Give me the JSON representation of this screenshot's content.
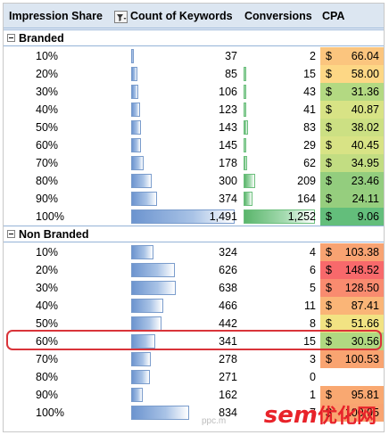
{
  "headers": {
    "impression_share": "Impression Share",
    "count_of_keywords": "Count of Keywords",
    "conversions": "Conversions",
    "cpa": "CPA"
  },
  "groups": [
    {
      "name": "Branded",
      "rows": [
        {
          "label": "10%",
          "count": "37",
          "count_frac": 0.025,
          "conv": "2",
          "conv_frac": 0.002,
          "cpa_sign": "$",
          "cpa": "66.04",
          "cpa_color": "#fbc57e"
        },
        {
          "label": "20%",
          "count": "85",
          "count_frac": 0.057,
          "conv": "15",
          "conv_frac": 0.012,
          "cpa_sign": "$",
          "cpa": "58.00",
          "cpa_color": "#fdd785"
        },
        {
          "label": "30%",
          "count": "106",
          "count_frac": 0.071,
          "conv": "43",
          "conv_frac": 0.034,
          "cpa_sign": "$",
          "cpa": "31.36",
          "cpa_color": "#b3d982"
        },
        {
          "label": "40%",
          "count": "123",
          "count_frac": 0.082,
          "conv": "41",
          "conv_frac": 0.033,
          "cpa_sign": "$",
          "cpa": "40.87",
          "cpa_color": "#d8e385"
        },
        {
          "label": "50%",
          "count": "143",
          "count_frac": 0.096,
          "conv": "83",
          "conv_frac": 0.066,
          "cpa_sign": "$",
          "cpa": "38.02",
          "cpa_color": "#cce083"
        },
        {
          "label": "60%",
          "count": "145",
          "count_frac": 0.097,
          "conv": "29",
          "conv_frac": 0.023,
          "cpa_sign": "$",
          "cpa": "40.45",
          "cpa_color": "#d8e385"
        },
        {
          "label": "70%",
          "count": "178",
          "count_frac": 0.119,
          "conv": "62",
          "conv_frac": 0.05,
          "cpa_sign": "$",
          "cpa": "34.95",
          "cpa_color": "#c2dd82"
        },
        {
          "label": "80%",
          "count": "300",
          "count_frac": 0.201,
          "conv": "209",
          "conv_frac": 0.167,
          "cpa_sign": "$",
          "cpa": "23.46",
          "cpa_color": "#93cd7e"
        },
        {
          "label": "90%",
          "count": "374",
          "count_frac": 0.251,
          "conv": "164",
          "conv_frac": 0.131,
          "cpa_sign": "$",
          "cpa": "24.11",
          "cpa_color": "#96ce7e"
        },
        {
          "label": "100%",
          "count": "1,491",
          "count_frac": 1.0,
          "conv": "1,252",
          "conv_frac": 1.0,
          "cpa_sign": "$",
          "cpa": "9.06",
          "cpa_color": "#63be7b"
        }
      ]
    },
    {
      "name": "Non Branded",
      "rows": [
        {
          "label": "10%",
          "count": "324",
          "count_frac": 0.217,
          "conv": "4",
          "conv_frac": 0.0,
          "cpa_sign": "$",
          "cpa": "103.38",
          "cpa_color": "#f8a372"
        },
        {
          "label": "20%",
          "count": "626",
          "count_frac": 0.42,
          "conv": "6",
          "conv_frac": 0.0,
          "cpa_sign": "$",
          "cpa": "148.52",
          "cpa_color": "#f8696b"
        },
        {
          "label": "30%",
          "count": "638",
          "count_frac": 0.428,
          "conv": "5",
          "conv_frac": 0.0,
          "cpa_sign": "$",
          "cpa": "128.50",
          "cpa_color": "#f98b6f"
        },
        {
          "label": "40%",
          "count": "466",
          "count_frac": 0.313,
          "conv": "11",
          "conv_frac": 0.0,
          "cpa_sign": "$",
          "cpa": "87.41",
          "cpa_color": "#fab577"
        },
        {
          "label": "50%",
          "count": "442",
          "count_frac": 0.296,
          "conv": "8",
          "conv_frac": 0.0,
          "cpa_sign": "$",
          "cpa": "51.66",
          "cpa_color": "#f2e383"
        },
        {
          "label": "60%",
          "count": "341",
          "count_frac": 0.229,
          "conv": "15",
          "conv_frac": 0.0,
          "cpa_sign": "$",
          "cpa": "30.56",
          "cpa_color": "#b0d881"
        },
        {
          "label": "70%",
          "count": "278",
          "count_frac": 0.186,
          "conv": "3",
          "conv_frac": 0.0,
          "cpa_sign": "$",
          "cpa": "100.53",
          "cpa_color": "#f9a471"
        },
        {
          "label": "80%",
          "count": "271",
          "count_frac": 0.182,
          "conv": "0",
          "conv_frac": 0.0,
          "cpa_sign": "",
          "cpa": "",
          "cpa_color": "#ffffff"
        },
        {
          "label": "90%",
          "count": "162",
          "count_frac": 0.109,
          "conv": "1",
          "conv_frac": 0.0,
          "cpa_sign": "$",
          "cpa": "95.81",
          "cpa_color": "#f9a871"
        },
        {
          "label": "100%",
          "count": "834",
          "count_frac": 0.559,
          "conv": "7",
          "conv_frac": 0.0,
          "cpa_sign": "$",
          "cpa": "100.95",
          "cpa_color": "#f9a471"
        }
      ]
    }
  ],
  "watermark": {
    "brand": "sem",
    "site": "优化网",
    "small": "ppc.m"
  }
}
